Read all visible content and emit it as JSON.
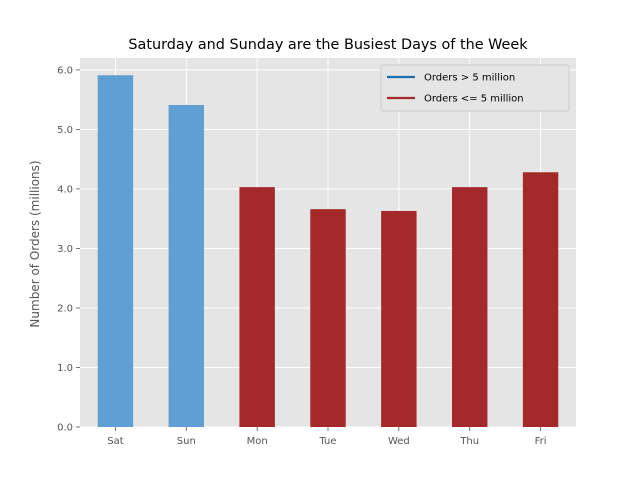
{
  "chart_data": {
    "type": "bar",
    "title": "Saturday and Sunday are the Busiest Days of the Week",
    "xlabel": "",
    "ylabel": "Number of Orders (millions)",
    "categories": [
      "Sat",
      "Sun",
      "Mon",
      "Tue",
      "Wed",
      "Thu",
      "Fri"
    ],
    "values": [
      5.91,
      5.41,
      4.03,
      3.66,
      3.63,
      4.03,
      4.28
    ],
    "ylim": [
      0,
      6.2
    ],
    "yticks": [
      0.0,
      1.0,
      2.0,
      3.0,
      4.0,
      5.0,
      6.0
    ],
    "ytick_labels": [
      "0.0",
      "1.0",
      "2.0",
      "3.0",
      "4.0",
      "5.0",
      "6.0"
    ],
    "grid": true,
    "threshold": 5,
    "colors": {
      "above": "#5f9fd4",
      "below": "#a3292a",
      "legend_above": "#1f6fb0",
      "legend_below": "#a3292a",
      "plot_bg": "#e5e5e5",
      "grid": "#ffffff"
    },
    "legend": {
      "placement": "top-right",
      "entries": [
        {
          "label": "Orders > 5 million",
          "color": "#1f6fb0"
        },
        {
          "label": "Orders <= 5 million",
          "color": "#a3292a"
        }
      ]
    }
  }
}
